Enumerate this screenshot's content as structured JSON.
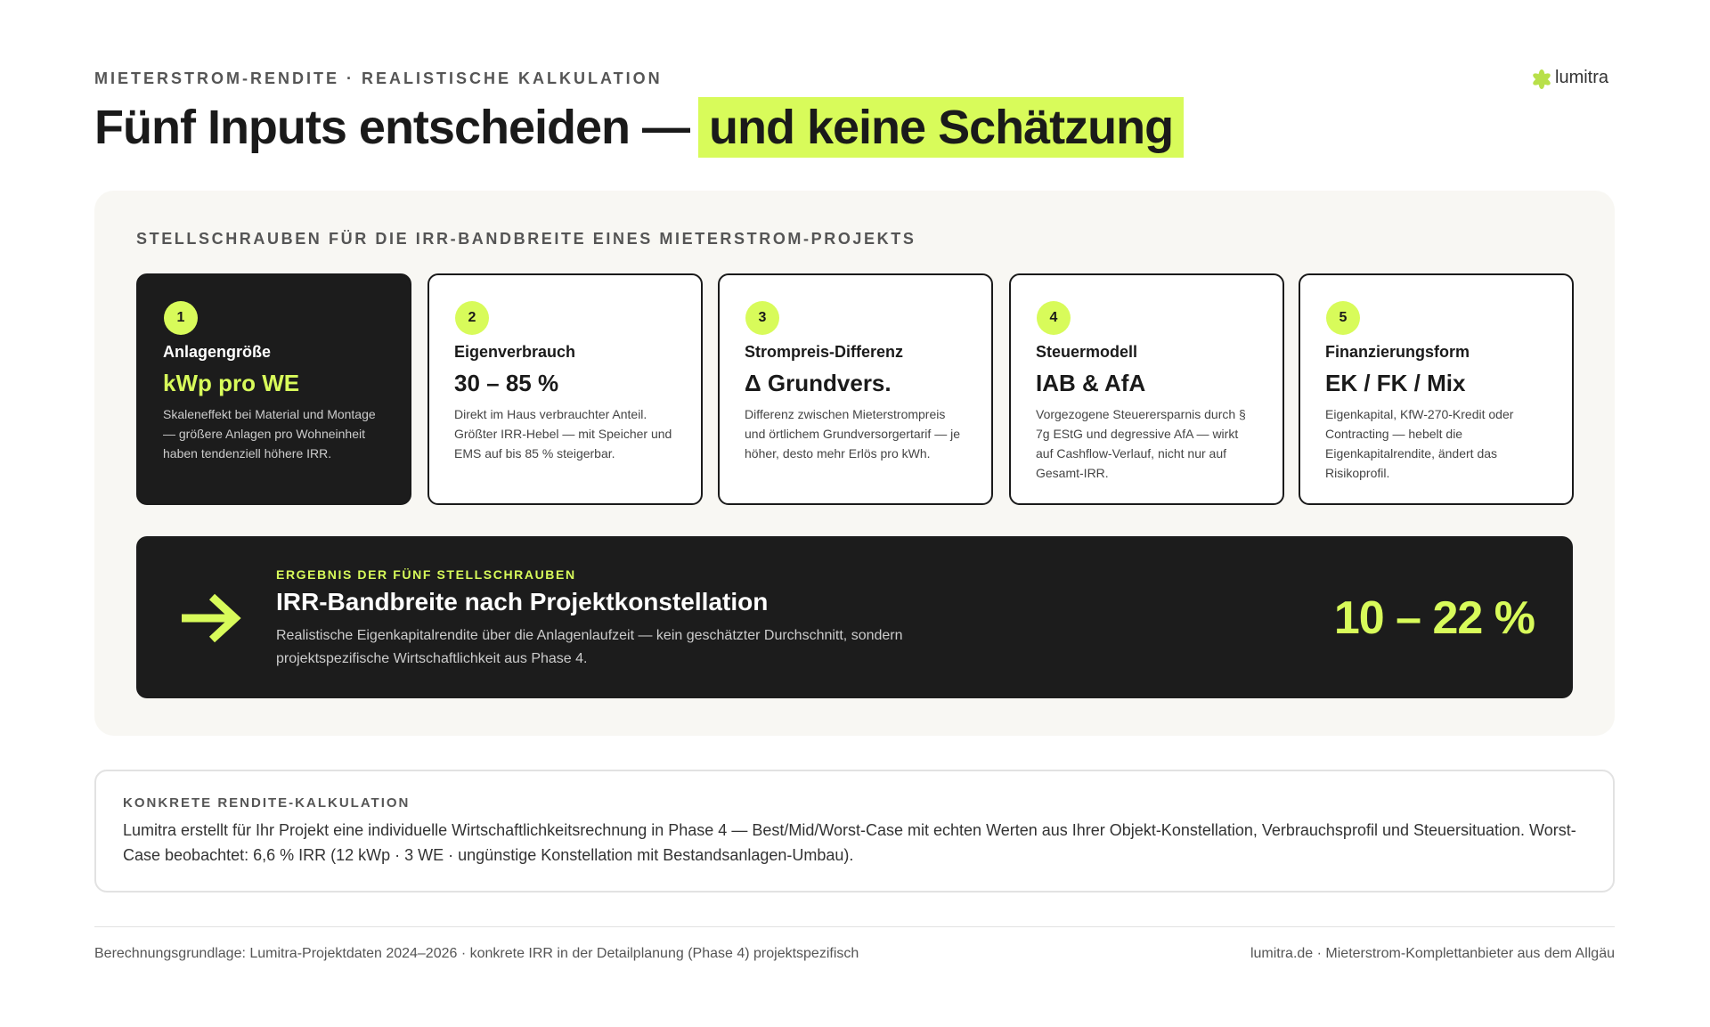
{
  "header": {
    "eyebrow": "MIETERSTROM-RENDITE · REALISTISCHE KALKULATION",
    "title_main": "Fünf Inputs entscheiden —",
    "title_highlight": "und keine Schätzung",
    "brand": "lumitra"
  },
  "panel": {
    "label": "STELLSCHRAUBEN FÜR DIE IRR-BANDBREITE EINES MIETERSTROM-PROJEKTS",
    "cards": [
      {
        "number": 1,
        "label": "Anlagengröße",
        "value": "kWp pro WE",
        "description": "Skaleneffekt bei Material und Montage — größere Anlagen pro Wohneinheit haben tendenziell höhere IRR."
      },
      {
        "number": 2,
        "label": "Eigenverbrauch",
        "value": "30 – 85 %",
        "description": "Direkt im Haus verbrauchter Anteil. Größter IRR-Hebel — mit Speicher und EMS auf bis 85 % steigerbar."
      },
      {
        "number": 3,
        "label": "Strompreis-Differenz",
        "value": "Δ Grundvers.",
        "description": "Differenz zwischen Mieterstrompreis und örtlichem Grundversorgertarif — je höher, desto mehr Erlös pro kWh."
      },
      {
        "number": 4,
        "label": "Steuermodell",
        "value": "IAB & AfA",
        "description": "Vorgezogene Steuerersparnis durch § 7g EStG und degressive AfA — wirkt auf Cashflow-Verlauf, nicht nur auf Gesamt-IRR."
      },
      {
        "number": 5,
        "label": "Finanzierungsform",
        "value": "EK / FK / Mix",
        "description": "Eigenkapital, KfW-270-Kredit oder Contracting — hebelt die Eigenkapitalrendite, ändert das Risikoprofil."
      }
    ],
    "result": {
      "eyebrow": "ERGEBNIS DER FÜNF STELLSCHRAUBEN",
      "title": "IRR-Bandbreite nach Projektkonstellation",
      "description": "Realistische Eigenkapitalrendite über die Anlagenlaufzeit — kein geschätzter Durchschnitt, sondern projektspezifische Wirtschaftlichkeit aus Phase 4.",
      "value": "10 – 22 %"
    }
  },
  "note": {
    "label": "KONKRETE RENDITE-KALKULATION",
    "text": "Lumitra erstellt für Ihr Projekt eine individuelle Wirtschaftlichkeitsrechnung in Phase 4 — Best/Mid/Worst-Case mit echten Werten aus Ihrer Objekt-Konstellation, Verbrauchsprofil und Steuersituation. Worst-Case beobachtet: 6,6 % IRR (12 kWp · 3 WE · ungünstige Konstellation mit Bestandsanlagen-Umbau)."
  },
  "footer": {
    "left": "Berechnungsgrundlage: Lumitra-Projektdaten 2024–2026 · konkrete IRR in der Detailplanung (Phase 4) projektspezifisch",
    "right": "lumitra.de · Mieterstrom-Komplettanbieter aus dem Allgäu"
  }
}
